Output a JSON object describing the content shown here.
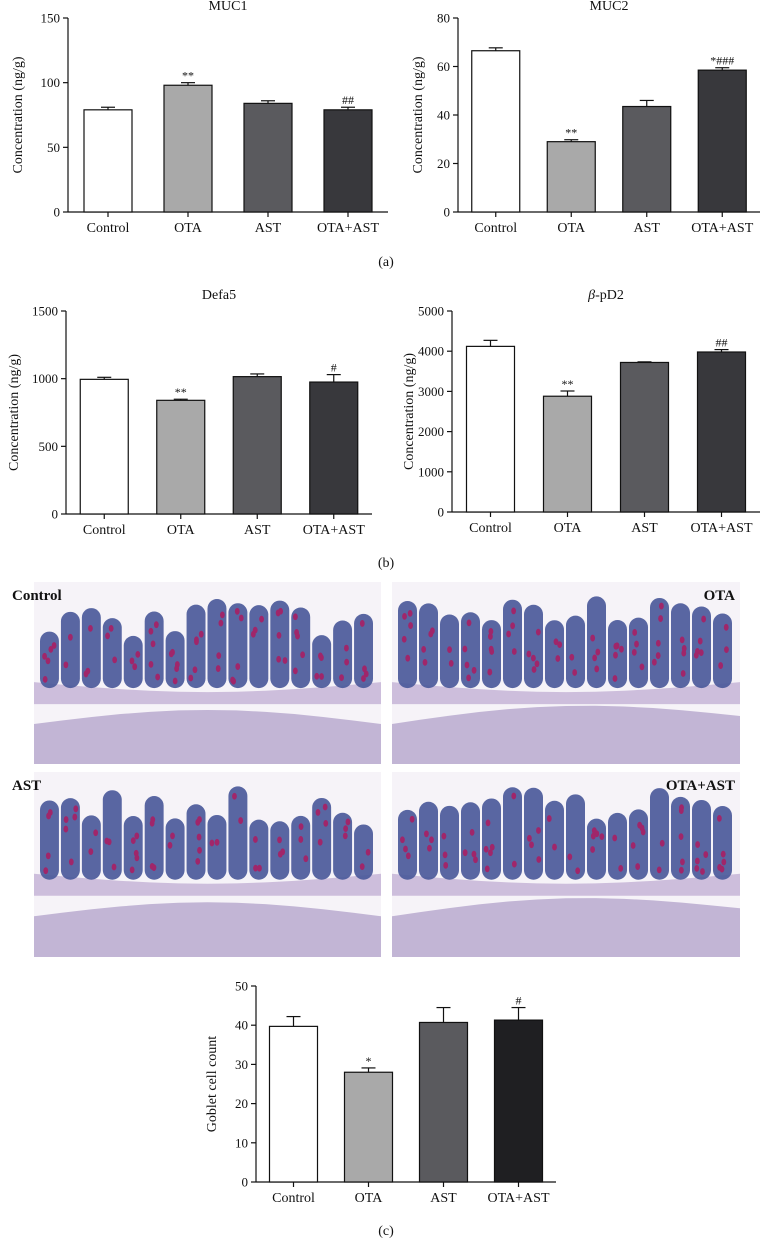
{
  "panel_labels": {
    "a": "(a)",
    "b": "(b)",
    "c": "(c)"
  },
  "histology": {
    "labels": [
      "Control",
      "OTA",
      "AST",
      "OTA+AST"
    ],
    "colors": {
      "mucosa": "#4b5a9a",
      "goblet": "#a0266a",
      "stroma": "#c9b8d8",
      "muscle": "#b9a9cf"
    }
  },
  "chart_data": [
    {
      "type": "bar",
      "title": "MUC1",
      "ylabel": "Concentration (ng/g)",
      "ylim": [
        0,
        150
      ],
      "yticks": [
        0,
        50,
        100,
        150
      ],
      "categories": [
        "Control",
        "OTA",
        "AST",
        "OTA+AST"
      ],
      "values": [
        79,
        98,
        84,
        79
      ],
      "errors": [
        2,
        2,
        2,
        2
      ],
      "annotations": [
        "",
        "**",
        "",
        "##"
      ],
      "colors": [
        "#ffffff",
        "#a9a9a9",
        "#5a5a5e",
        "#38383c"
      ]
    },
    {
      "type": "bar",
      "title": "MUC2",
      "ylabel": "Concentration (ng/g)",
      "ylim": [
        0,
        80
      ],
      "yticks": [
        0,
        20,
        40,
        60,
        80
      ],
      "categories": [
        "Control",
        "OTA",
        "AST",
        "OTA+AST"
      ],
      "values": [
        66.5,
        29,
        43.5,
        58.5
      ],
      "errors": [
        1.2,
        0.8,
        2.5,
        1.0
      ],
      "annotations": [
        "",
        "**",
        "",
        "*###"
      ],
      "colors": [
        "#ffffff",
        "#a9a9a9",
        "#5a5a5e",
        "#38383c"
      ]
    },
    {
      "type": "bar",
      "title": "Defa5",
      "ylabel": "Concentration (ng/g)",
      "ylim": [
        0,
        1500
      ],
      "yticks": [
        0,
        500,
        1000,
        1500
      ],
      "categories": [
        "Control",
        "OTA",
        "AST",
        "OTA+AST"
      ],
      "values": [
        995,
        840,
        1015,
        975
      ],
      "errors": [
        15,
        8,
        20,
        55
      ],
      "annotations": [
        "",
        "**",
        "",
        "#"
      ],
      "colors": [
        "#ffffff",
        "#a9a9a9",
        "#5a5a5e",
        "#38383c"
      ]
    },
    {
      "type": "bar",
      "title": "β-pD2",
      "ylabel": "Concentration (ng/g)",
      "ylim": [
        0,
        5000
      ],
      "yticks": [
        0,
        1000,
        2000,
        3000,
        4000,
        5000
      ],
      "categories": [
        "Control",
        "OTA",
        "AST",
        "OTA+AST"
      ],
      "values": [
        4120,
        2880,
        3720,
        3980
      ],
      "errors": [
        150,
        130,
        15,
        60
      ],
      "annotations": [
        "",
        "**",
        "",
        "##"
      ],
      "colors": [
        "#ffffff",
        "#a9a9a9",
        "#5a5a5e",
        "#38383c"
      ]
    },
    {
      "type": "bar",
      "title": "",
      "ylabel": "Goblet cell count",
      "ylim": [
        0,
        50
      ],
      "yticks": [
        0,
        10,
        20,
        30,
        40,
        50
      ],
      "categories": [
        "Control",
        "OTA",
        "AST",
        "OTA+AST"
      ],
      "values": [
        39.7,
        28,
        40.7,
        41.3
      ],
      "errors": [
        2.5,
        1.1,
        3.8,
        3.2
      ],
      "annotations": [
        "",
        "*",
        "",
        "#"
      ],
      "colors": [
        "#ffffff",
        "#a9a9a9",
        "#5a5a5e",
        "#1f1f22"
      ]
    }
  ]
}
